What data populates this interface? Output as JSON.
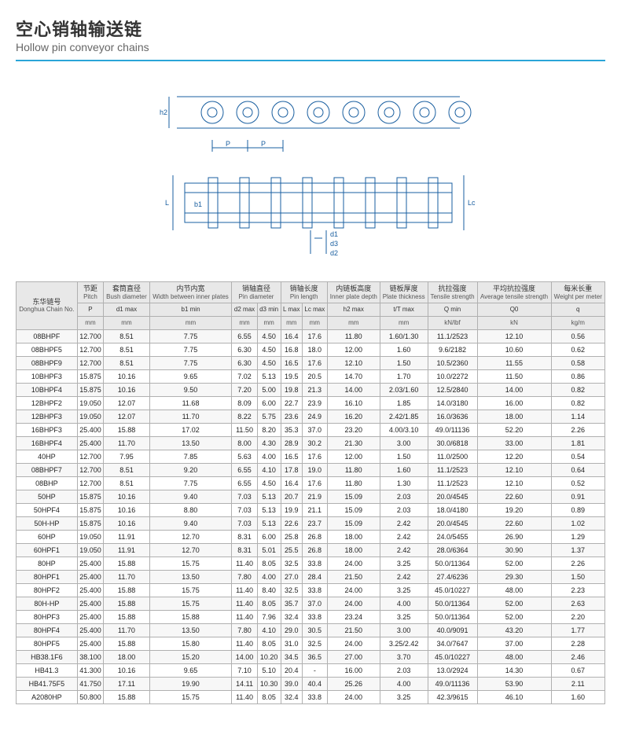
{
  "title": {
    "cn": "空心销轴输送链",
    "en": "Hollow pin conveyor chains"
  },
  "headers": {
    "chain": {
      "cn": "东华链号",
      "en": "Donghua Chain No."
    },
    "cols": [
      {
        "cn": "节距",
        "en": "Pitch",
        "sym": "P",
        "unit": "mm"
      },
      {
        "cn": "套筒直径",
        "en": "Bush diameter",
        "sym": "d1 max",
        "unit": "mm"
      },
      {
        "cn": "内节内宽",
        "en": "Width between inner plates",
        "sym": "b1 min",
        "unit": "mm"
      },
      {
        "cn": "销轴直径",
        "en": "Pin diameter",
        "sym": "d2 max",
        "unit": "mm",
        "sym2": "d3 min",
        "unit2": "mm"
      },
      {
        "cn": "销轴长度",
        "en": "Pin length",
        "sym": "L max",
        "unit": "mm",
        "sym2": "Lc max",
        "unit2": "mm"
      },
      {
        "cn": "内链板高度",
        "en": "Inner plate depth",
        "sym": "h2 max",
        "unit": "mm"
      },
      {
        "cn": "链板厚度",
        "en": "Plate thickness",
        "sym": "t/T max",
        "unit": "mm"
      },
      {
        "cn": "抗拉强度",
        "en": "Tensile strength",
        "sym": "Q min",
        "unit": "kN/lbf"
      },
      {
        "cn": "平均抗拉强度",
        "en": "Average tensile strength",
        "sym": "Q0",
        "unit": "kN"
      },
      {
        "cn": "每米长重",
        "en": "Weight per meter",
        "sym": "q",
        "unit": "kg/m"
      }
    ]
  },
  "rows": [
    {
      "c": "08BHPF",
      "p": "12.700",
      "d1": "8.51",
      "b1": "7.75",
      "d2": "6.55",
      "d3": "4.50",
      "L": "16.4",
      "Lc": "17.6",
      "h2": "11.80",
      "tT": "1.60/1.30",
      "Q": "11.1/2523",
      "Q0": "12.10",
      "q": "0.56"
    },
    {
      "c": "08BHPF5",
      "p": "12.700",
      "d1": "8.51",
      "b1": "7.75",
      "d2": "6.30",
      "d3": "4.50",
      "L": "16.8",
      "Lc": "18.0",
      "h2": "12.00",
      "tT": "1.60",
      "Q": "9.6/2182",
      "Q0": "10.60",
      "q": "0.62"
    },
    {
      "c": "08BHPF9",
      "p": "12.700",
      "d1": "8.51",
      "b1": "7.75",
      "d2": "6.30",
      "d3": "4.50",
      "L": "16.5",
      "Lc": "17.6",
      "h2": "12.10",
      "tT": "1.50",
      "Q": "10.5/2360",
      "Q0": "11.55",
      "q": "0.58"
    },
    {
      "c": "10BHPF3",
      "p": "15.875",
      "d1": "10.16",
      "b1": "9.65",
      "d2": "7.02",
      "d3": "5.13",
      "L": "19.5",
      "Lc": "20.5",
      "h2": "14.70",
      "tT": "1.70",
      "Q": "10.0/2272",
      "Q0": "11.50",
      "q": "0.86"
    },
    {
      "c": "10BHPF4",
      "p": "15.875",
      "d1": "10.16",
      "b1": "9.50",
      "d2": "7.20",
      "d3": "5.00",
      "L": "19.8",
      "Lc": "21.3",
      "h2": "14.00",
      "tT": "2.03/1.60",
      "Q": "12.5/2840",
      "Q0": "14.00",
      "q": "0.82"
    },
    {
      "c": "12BHPF2",
      "p": "19.050",
      "d1": "12.07",
      "b1": "11.68",
      "d2": "8.09",
      "d3": "6.00",
      "L": "22.7",
      "Lc": "23.9",
      "h2": "16.10",
      "tT": "1.85",
      "Q": "14.0/3180",
      "Q0": "16.00",
      "q": "0.82"
    },
    {
      "c": "12BHPF3",
      "p": "19.050",
      "d1": "12.07",
      "b1": "11.70",
      "d2": "8.22",
      "d3": "5.75",
      "L": "23.6",
      "Lc": "24.9",
      "h2": "16.20",
      "tT": "2.42/1.85",
      "Q": "16.0/3636",
      "Q0": "18.00",
      "q": "1.14"
    },
    {
      "c": "16BHPF3",
      "p": "25.400",
      "d1": "15.88",
      "b1": "17.02",
      "d2": "11.50",
      "d3": "8.20",
      "L": "35.3",
      "Lc": "37.0",
      "h2": "23.20",
      "tT": "4.00/3.10",
      "Q": "49.0/11136",
      "Q0": "52.20",
      "q": "2.26"
    },
    {
      "c": "16BHPF4",
      "p": "25.400",
      "d1": "11.70",
      "b1": "13.50",
      "d2": "8.00",
      "d3": "4.30",
      "L": "28.9",
      "Lc": "30.2",
      "h2": "21.30",
      "tT": "3.00",
      "Q": "30.0/6818",
      "Q0": "33.00",
      "q": "1.81"
    },
    {
      "c": "40HP",
      "p": "12.700",
      "d1": "7.95",
      "b1": "7.85",
      "d2": "5.63",
      "d3": "4.00",
      "L": "16.5",
      "Lc": "17.6",
      "h2": "12.00",
      "tT": "1.50",
      "Q": "11.0/2500",
      "Q0": "12.20",
      "q": "0.54"
    },
    {
      "c": "08BHPF7",
      "p": "12.700",
      "d1": "8.51",
      "b1": "9.20",
      "d2": "6.55",
      "d3": "4.10",
      "L": "17.8",
      "Lc": "19.0",
      "h2": "11.80",
      "tT": "1.60",
      "Q": "11.1/2523",
      "Q0": "12.10",
      "q": "0.64"
    },
    {
      "c": "08BHP",
      "p": "12.700",
      "d1": "8.51",
      "b1": "7.75",
      "d2": "6.55",
      "d3": "4.50",
      "L": "16.4",
      "Lc": "17.6",
      "h2": "11.80",
      "tT": "1.30",
      "Q": "11.1/2523",
      "Q0": "12.10",
      "q": "0.52"
    },
    {
      "c": "50HP",
      "p": "15.875",
      "d1": "10.16",
      "b1": "9.40",
      "d2": "7.03",
      "d3": "5.13",
      "L": "20.7",
      "Lc": "21.9",
      "h2": "15.09",
      "tT": "2.03",
      "Q": "20.0/4545",
      "Q0": "22.60",
      "q": "0.91"
    },
    {
      "c": "50HPF4",
      "p": "15.875",
      "d1": "10.16",
      "b1": "8.80",
      "d2": "7.03",
      "d3": "5.13",
      "L": "19.9",
      "Lc": "21.1",
      "h2": "15.09",
      "tT": "2.03",
      "Q": "18.0/4180",
      "Q0": "19.20",
      "q": "0.89"
    },
    {
      "c": "50H-HP",
      "p": "15.875",
      "d1": "10.16",
      "b1": "9.40",
      "d2": "7.03",
      "d3": "5.13",
      "L": "22.6",
      "Lc": "23.7",
      "h2": "15.09",
      "tT": "2.42",
      "Q": "20.0/4545",
      "Q0": "22.60",
      "q": "1.02"
    },
    {
      "c": "60HP",
      "p": "19.050",
      "d1": "11.91",
      "b1": "12.70",
      "d2": "8.31",
      "d3": "6.00",
      "L": "25.8",
      "Lc": "26.8",
      "h2": "18.00",
      "tT": "2.42",
      "Q": "24.0/5455",
      "Q0": "26.90",
      "q": "1.29"
    },
    {
      "c": "60HPF1",
      "p": "19.050",
      "d1": "11.91",
      "b1": "12.70",
      "d2": "8.31",
      "d3": "5.01",
      "L": "25.5",
      "Lc": "26.8",
      "h2": "18.00",
      "tT": "2.42",
      "Q": "28.0/6364",
      "Q0": "30.90",
      "q": "1.37"
    },
    {
      "c": "80HP",
      "p": "25.400",
      "d1": "15.88",
      "b1": "15.75",
      "d2": "11.40",
      "d3": "8.05",
      "L": "32.5",
      "Lc": "33.8",
      "h2": "24.00",
      "tT": "3.25",
      "Q": "50.0/11364",
      "Q0": "52.00",
      "q": "2.26"
    },
    {
      "c": "80HPF1",
      "p": "25.400",
      "d1": "11.70",
      "b1": "13.50",
      "d2": "7.80",
      "d3": "4.00",
      "L": "27.0",
      "Lc": "28.4",
      "h2": "21.50",
      "tT": "2.42",
      "Q": "27.4/6236",
      "Q0": "29.30",
      "q": "1.50"
    },
    {
      "c": "80HPF2",
      "p": "25.400",
      "d1": "15.88",
      "b1": "15.75",
      "d2": "11.40",
      "d3": "8.40",
      "L": "32.5",
      "Lc": "33.8",
      "h2": "24.00",
      "tT": "3.25",
      "Q": "45.0/10227",
      "Q0": "48.00",
      "q": "2.23"
    },
    {
      "c": "80H-HP",
      "p": "25.400",
      "d1": "15.88",
      "b1": "15.75",
      "d2": "11.40",
      "d3": "8.05",
      "L": "35.7",
      "Lc": "37.0",
      "h2": "24.00",
      "tT": "4.00",
      "Q": "50.0/11364",
      "Q0": "52.00",
      "q": "2.63"
    },
    {
      "c": "80HPF3",
      "p": "25.400",
      "d1": "15.88",
      "b1": "15.88",
      "d2": "11.40",
      "d3": "7.96",
      "L": "32.4",
      "Lc": "33.8",
      "h2": "23.24",
      "tT": "3.25",
      "Q": "50.0/11364",
      "Q0": "52.00",
      "q": "2.20"
    },
    {
      "c": "80HPF4",
      "p": "25.400",
      "d1": "11.70",
      "b1": "13.50",
      "d2": "7.80",
      "d3": "4.10",
      "L": "29.0",
      "Lc": "30.5",
      "h2": "21.50",
      "tT": "3.00",
      "Q": "40.0/9091",
      "Q0": "43.20",
      "q": "1.77"
    },
    {
      "c": "80HPF5",
      "p": "25.400",
      "d1": "15.88",
      "b1": "15.80",
      "d2": "11.40",
      "d3": "8.05",
      "L": "31.0",
      "Lc": "32.5",
      "h2": "24.00",
      "tT": "3.25/2.42",
      "Q": "34.0/7647",
      "Q0": "37.00",
      "q": "2.28"
    },
    {
      "c": "HB38.1F6",
      "p": "38.100",
      "d1": "18.00",
      "b1": "15.20",
      "d2": "14.00",
      "d3": "10.20",
      "L": "34.5",
      "Lc": "36.5",
      "h2": "27.00",
      "tT": "3.70",
      "Q": "45.0/10227",
      "Q0": "48.00",
      "q": "2.46"
    },
    {
      "c": "HB41.3",
      "p": "41.300",
      "d1": "10.16",
      "b1": "9.65",
      "d2": "7.10",
      "d3": "5.10",
      "L": "20.4",
      "Lc": "-",
      "h2": "16.00",
      "tT": "2.03",
      "Q": "13.0/2924",
      "Q0": "14.30",
      "q": "0.67"
    },
    {
      "c": "HB41.75F5",
      "p": "41.750",
      "d1": "17.11",
      "b1": "19.90",
      "d2": "14.11",
      "d3": "10.30",
      "L": "39.0",
      "Lc": "40.4",
      "h2": "25.26",
      "tT": "4.00",
      "Q": "49.0/11136",
      "Q0": "53.90",
      "q": "2.11"
    },
    {
      "c": "A2080HP",
      "p": "50.800",
      "d1": "15.88",
      "b1": "15.75",
      "d2": "11.40",
      "d3": "8.05",
      "L": "32.4",
      "Lc": "33.8",
      "h2": "24.00",
      "tT": "3.25",
      "Q": "42.3/9615",
      "Q0": "46.10",
      "q": "1.60"
    }
  ]
}
